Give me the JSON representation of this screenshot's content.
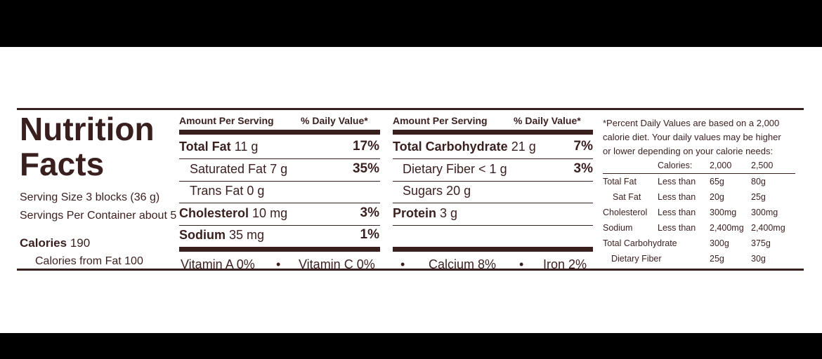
{
  "title": {
    "line1": "Nutrition",
    "line2": "Facts"
  },
  "serving": {
    "size": "Serving Size 3 blocks (36 g)",
    "per_container": "Servings Per Container about 5",
    "calories_label": "Calories",
    "calories_value": "190",
    "calories_from_fat": "Calories from Fat 100"
  },
  "col1": {
    "amount_header": "Amount Per Serving",
    "dv_header": "% Daily Value*",
    "rows": [
      {
        "label": "Total Fat",
        "amount": "11 g",
        "dv": "17%"
      },
      {
        "label": "Saturated Fat",
        "amount": "7 g",
        "dv": "35%"
      },
      {
        "label": "Trans Fat",
        "amount": "0 g",
        "dv": ""
      },
      {
        "label": "Cholesterol",
        "amount": "10 mg",
        "dv": "3%"
      },
      {
        "label": "Sodium",
        "amount": "35 mg",
        "dv": "1%"
      }
    ]
  },
  "col2": {
    "amount_header": "Amount Per Serving",
    "dv_header": "% Daily Value*",
    "rows": [
      {
        "label": "Total Carbohydrate",
        "amount": "21 g",
        "dv": "7%"
      },
      {
        "label": "Dietary Fiber",
        "amount": "< 1 g",
        "dv": "3%"
      },
      {
        "label": "Sugars",
        "amount": "20 g",
        "dv": ""
      },
      {
        "label": "Protein",
        "amount": "3 g",
        "dv": ""
      }
    ]
  },
  "vitamins": {
    "vitamin_a": "Vitamin A 0%",
    "vitamin_c": "Vitamin C 0%",
    "calcium": "Calcium 8%",
    "iron": "Iron 2%",
    "bullet": "•"
  },
  "footnote": {
    "line1": "*Percent Daily Values are based on a 2,000",
    "line2": "calorie diet. Your daily values may be higher",
    "line3": "or lower depending on your calorie needs:",
    "header": {
      "calories": "Calories:",
      "c1": "2,000",
      "c2": "2,500"
    },
    "rows": [
      {
        "nutrient": "Total Fat",
        "qual": "Less than",
        "v1": "65g",
        "v2": "80g"
      },
      {
        "nutrient": "Sat Fat",
        "qual": "Less than",
        "v1": "20g",
        "v2": "25g"
      },
      {
        "nutrient": "Cholesterol",
        "qual": "Less than",
        "v1": "300mg",
        "v2": "300mg"
      },
      {
        "nutrient": "Sodium",
        "qual": "Less than",
        "v1": "2,400mg",
        "v2": "2,400mg"
      },
      {
        "nutrient": "Total Carbohydrate",
        "qual": "",
        "v1": "300g",
        "v2": "375g"
      },
      {
        "nutrient": "Dietary Fiber",
        "qual": "",
        "v1": "25g",
        "v2": "30g"
      }
    ]
  },
  "colors": {
    "ink": "#3a1f1f",
    "background": "#ffffff",
    "letterbox": "#000000"
  }
}
